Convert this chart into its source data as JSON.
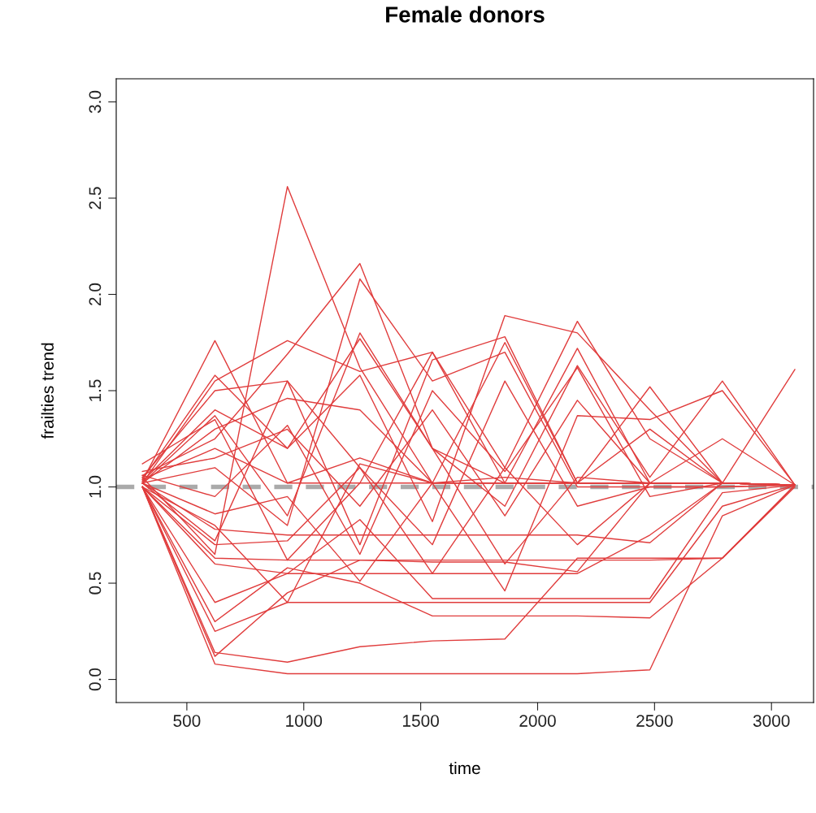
{
  "chart_data": {
    "type": "line",
    "title": "Female donors",
    "xlabel": "time",
    "ylabel": "frailties trend",
    "x": [
      310,
      620,
      930,
      1240,
      1550,
      1860,
      2170,
      2480,
      2790,
      3100
    ],
    "xlim": [
      198,
      3180
    ],
    "xticks": [
      500,
      1000,
      1500,
      2000,
      2500,
      3000
    ],
    "ylim": [
      -0.12,
      3.12
    ],
    "yticks": [
      {
        "value": 0,
        "label": "0.0"
      },
      {
        "value": 0.5,
        "label": "0.5"
      },
      {
        "value": 1,
        "label": "1.0"
      },
      {
        "value": 1.5,
        "label": "1.5"
      },
      {
        "value": 2,
        "label": "2.0"
      },
      {
        "value": 2.5,
        "label": "2.5"
      },
      {
        "value": 3,
        "label": "3.0"
      }
    ],
    "grid": false,
    "marker": "none",
    "line_style": "solid",
    "ref_lines": [
      {
        "axis": "y",
        "value": 1,
        "label": null,
        "color": "#aaaaaa",
        "line_style": "dashed"
      }
    ],
    "series": [
      {
        "color": "#e03c3c",
        "values": [
          1.02,
          0.86,
          0.95,
          0.51,
          1.02,
          0.46,
          1.37,
          1.35,
          1.5,
          1.01
        ]
      },
      {
        "color": "#e03c3c",
        "values": [
          1.03,
          1.76,
          1.02,
          1.02,
          1.02,
          1.02,
          1.02,
          1.02,
          1.02,
          1.01
        ]
      },
      {
        "color": "#e03c3c",
        "values": [
          1.05,
          0.65,
          2.56,
          1.62,
          1.02,
          1.05,
          1.02,
          1.02,
          1.02,
          1.01
        ]
      },
      {
        "color": "#e03c3c",
        "values": [
          1.06,
          1.25,
          1.69,
          2.16,
          1.2,
          1.02,
          1.02,
          1.02,
          1.02,
          1.01
        ]
      },
      {
        "color": "#e03c3c",
        "values": [
          1.02,
          1.1,
          0.8,
          2.08,
          1.55,
          1.7,
          1.0,
          1.0,
          1.0,
          1.01
        ]
      },
      {
        "color": "#e03c3c",
        "values": [
          1.04,
          1.58,
          1.2,
          1.58,
          0.82,
          1.89,
          1.8,
          1.4,
          1.02,
          1.01
        ]
      },
      {
        "color": "#e03c3c",
        "values": [
          1.02,
          1.55,
          1.76,
          1.6,
          1.7,
          1.1,
          1.86,
          1.25,
          1.02,
          1.01
        ]
      },
      {
        "color": "#e03c3c",
        "values": [
          1.05,
          1.5,
          1.55,
          0.7,
          1.66,
          1.78,
          1.02,
          1.52,
          1.02,
          1.01
        ]
      },
      {
        "color": "#e03c3c",
        "values": [
          1.03,
          1.4,
          1.2,
          1.77,
          1.2,
          0.9,
          1.63,
          1.05,
          1.55,
          1.01
        ]
      },
      {
        "color": "#e03c3c",
        "values": [
          1.02,
          1.3,
          1.46,
          1.4,
          1.02,
          1.75,
          1.02,
          1.3,
          1.02,
          1.01
        ]
      },
      {
        "color": "#e03c3c",
        "values": [
          1.04,
          1.2,
          1.02,
          1.15,
          1.02,
          1.02,
          1.02,
          1.02,
          1.02,
          1.01
        ]
      },
      {
        "color": "#e03c3c",
        "values": [
          1.02,
          0.78,
          0.75,
          0.75,
          0.75,
          0.75,
          0.75,
          0.71,
          1.02,
          1.01
        ]
      },
      {
        "color": "#e03c3c",
        "values": [
          1.0,
          0.63,
          0.62,
          0.62,
          0.61,
          0.61,
          0.56,
          1.02,
          1.02,
          1.01
        ]
      },
      {
        "color": "#e03c3c",
        "values": [
          1.0,
          0.6,
          0.55,
          0.55,
          0.55,
          0.55,
          0.55,
          0.75,
          1.02,
          1.01
        ]
      },
      {
        "color": "#e03c3c",
        "values": [
          1.0,
          0.4,
          0.55,
          0.83,
          0.42,
          0.42,
          0.42,
          0.42,
          0.97,
          1.01
        ]
      },
      {
        "color": "#e03c3c",
        "values": [
          1.0,
          0.3,
          0.58,
          0.5,
          0.33,
          0.33,
          0.33,
          0.32,
          0.63,
          1.01
        ]
      },
      {
        "color": "#e03c3c",
        "values": [
          1.0,
          0.25,
          0.4,
          0.4,
          0.4,
          0.4,
          0.4,
          0.4,
          0.9,
          1.01
        ]
      },
      {
        "color": "#e03c3c",
        "values": [
          1.0,
          0.14,
          0.09,
          0.17,
          0.2,
          0.21,
          0.63,
          0.63,
          0.63,
          1.0
        ]
      },
      {
        "color": "#e03c3c",
        "values": [
          1.0,
          0.08,
          0.03,
          0.03,
          0.03,
          0.03,
          0.03,
          0.05,
          0.85,
          1.01
        ]
      },
      {
        "color": "#e03c3c",
        "values": [
          1.0,
          0.12,
          0.45,
          0.62,
          0.62,
          0.62,
          0.62,
          0.62,
          0.63,
          1.01
        ]
      },
      {
        "color": "#e03c3c",
        "values": [
          1.0,
          0.7,
          0.72,
          1.1,
          0.55,
          1.1,
          0.7,
          1.02,
          1.02,
          1.61
        ]
      },
      {
        "color": "#e03c3c",
        "values": [
          1.08,
          1.15,
          1.3,
          0.9,
          1.4,
          0.85,
          1.45,
          1.02,
          1.25,
          1.01
        ]
      },
      {
        "color": "#e03c3c",
        "values": [
          1.02,
          1.37,
          0.85,
          1.8,
          1.2,
          0.6,
          1.05,
          1.02,
          1.02,
          1.01
        ]
      },
      {
        "color": "#e03c3c",
        "values": [
          1.06,
          0.95,
          1.32,
          0.65,
          1.5,
          1.08,
          1.62,
          0.95,
          1.02,
          1.01
        ]
      },
      {
        "color": "#e03c3c",
        "values": [
          1.02,
          0.72,
          1.55,
          1.1,
          0.7,
          1.55,
          0.9,
          1.0,
          1.0,
          1.01
        ]
      },
      {
        "color": "#e03c3c",
        "values": [
          1.12,
          1.35,
          0.62,
          1.02,
          1.7,
          1.02,
          1.02,
          1.02,
          1.02,
          1.01
        ]
      },
      {
        "color": "#e03c3c",
        "values": [
          1.0,
          0.8,
          0.4,
          1.12,
          1.02,
          1.02,
          1.72,
          1.02,
          1.02,
          1.01
        ]
      }
    ]
  }
}
